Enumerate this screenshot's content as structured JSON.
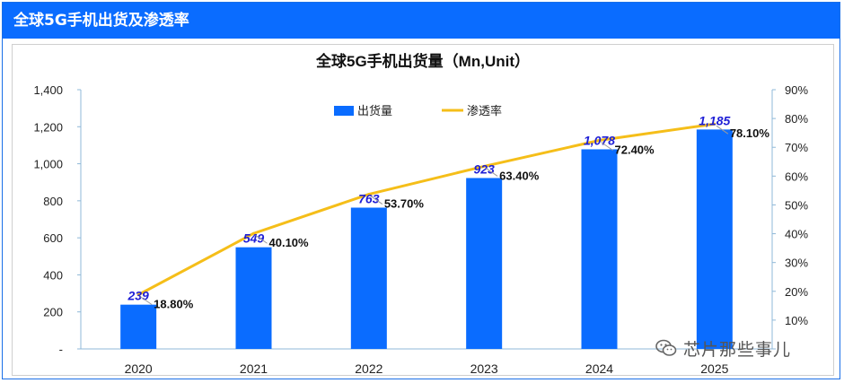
{
  "header": {
    "title": "全球5G手机出货及渗透率"
  },
  "watermark": {
    "text": "芯片那些事儿",
    "icon": "wechat-icon"
  },
  "colors": {
    "header": "#0a6cff",
    "bar": "#0a6cff",
    "line": "#f5be19",
    "bar_label": "#1f1fd6"
  },
  "chart_data": {
    "type": "bar",
    "title": "全球5G手机出货量（Mn,Unit）",
    "categories": [
      "2020",
      "2021",
      "2022",
      "2023",
      "2024",
      "2025"
    ],
    "series": [
      {
        "name": "出货量",
        "type": "bar",
        "axis": "left",
        "values": [
          239,
          549,
          763,
          923,
          1078,
          1185
        ],
        "labels": [
          "239",
          "549",
          "763",
          "923",
          "1,078",
          "1,185"
        ]
      },
      {
        "name": "渗透率",
        "type": "line",
        "axis": "right",
        "values": [
          18.8,
          40.1,
          53.7,
          63.4,
          72.4,
          78.1
        ],
        "labels": [
          "18.80%",
          "40.10%",
          "53.70%",
          "63.40%",
          "72.40%",
          "78.10%"
        ]
      }
    ],
    "y_left": {
      "range": [
        0,
        1400
      ],
      "ticks": [
        "-",
        "200",
        "400",
        "600",
        "800",
        "1,000",
        "1,200",
        "1,400"
      ]
    },
    "y_right": {
      "range": [
        0,
        90
      ],
      "ticks": [
        "",
        "10%",
        "20%",
        "30%",
        "40%",
        "50%",
        "60%",
        "70%",
        "80%",
        "90%"
      ]
    },
    "legend_position": "top-center",
    "grid": false
  }
}
